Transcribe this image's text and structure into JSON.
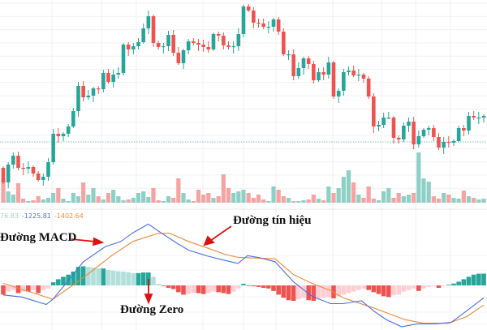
{
  "chart_data": {
    "type": "candlestick",
    "title": "",
    "price_close": [
      75,
      97,
      108,
      93,
      92,
      94,
      86,
      78,
      82,
      100,
      135,
      132,
      135,
      144,
      163,
      194,
      180,
      182,
      191,
      190,
      210,
      199,
      208,
      210,
      245,
      239,
      243,
      248,
      265,
      280,
      247,
      242,
      243,
      257,
      235,
      222,
      238,
      249,
      247,
      245,
      242,
      239,
      258,
      256,
      244,
      242,
      243,
      258,
      292,
      287,
      272,
      271,
      267,
      267,
      276,
      261,
      233,
      233,
      206,
      216,
      228,
      221,
      201,
      211,
      208,
      223,
      181,
      188,
      211,
      213,
      207,
      208,
      203,
      181,
      144,
      146,
      155,
      155,
      130,
      128,
      145,
      150,
      122,
      132,
      140,
      142,
      131,
      118,
      125,
      124,
      126,
      142,
      139,
      157,
      155,
      155,
      157
    ],
    "first_open": 93,
    "reference_price": 125,
    "volume": [
      30,
      14,
      10,
      24,
      5,
      2,
      3,
      8,
      4,
      6,
      12,
      18,
      5,
      2,
      12,
      8,
      25,
      10,
      18,
      8,
      4,
      12,
      16,
      8,
      3,
      4,
      6,
      12,
      14,
      7,
      18,
      3,
      2,
      8,
      6,
      30,
      12,
      4,
      2,
      16,
      10,
      12,
      6,
      8,
      35,
      18,
      12,
      14,
      16,
      12,
      6,
      10,
      4,
      2,
      20,
      16,
      8,
      6,
      2,
      2,
      3,
      4,
      10,
      5,
      3,
      20,
      12,
      18,
      32,
      40,
      25,
      10,
      6,
      20,
      5,
      3,
      14,
      18,
      6,
      12,
      8,
      10,
      12,
      62,
      30,
      26,
      8,
      5,
      12,
      10,
      6,
      5,
      15,
      8,
      6,
      4,
      5
    ],
    "macd_line": {
      "name": "MACD",
      "index": [
        0,
        3.7,
        8.6,
        9.9,
        12.3,
        16,
        20.4,
        23.5,
        25.9,
        29,
        31.5,
        34.6,
        37,
        40.7,
        44.4,
        46.9,
        48.8,
        51.2,
        54.3,
        58,
        61.7,
        65.4,
        67.9,
        71.6,
        74,
        76.5,
        79.6,
        82.7,
        86.4,
        89.5,
        92.6,
        96
      ],
      "values": [
        -759,
        -920,
        -1518,
        -1104,
        46,
        1886,
        3082,
        3496,
        4186,
        4876,
        4186,
        3381,
        2806,
        2346,
        1978,
        1748,
        2369,
        2208,
        1886,
        276,
        -874,
        -1449,
        -1449,
        -1219,
        -2024,
        -2714,
        -3289,
        -3059,
        -3059,
        -2944,
        -2024,
        -989
      ]
    },
    "signal_line": {
      "name": "Signal",
      "index": [
        0,
        3.7,
        9.9,
        16,
        21.6,
        25.9,
        30.9,
        33.3,
        37,
        40.7,
        44.4,
        46.9,
        54.3,
        58,
        61.7,
        65.4,
        67.9,
        74,
        80.2,
        84,
        88.9,
        92.6,
        96
      ],
      "values": [
        161,
        -299,
        -1104,
        621,
        2346,
        3496,
        4140,
        4140,
        3496,
        2990,
        2461,
        2231,
        2116,
        851,
        161,
        -414,
        -989,
        -1794,
        -2714,
        -3013,
        -3013,
        -2484,
        -1564
      ]
    },
    "histogram": [
      -30,
      -20,
      -15,
      -25,
      -20,
      -20,
      -15,
      -25,
      -15,
      -10,
      10,
      20,
      28,
      35,
      45,
      60,
      62,
      60,
      58,
      55,
      55,
      50,
      48,
      46,
      45,
      43,
      40,
      40,
      42,
      42,
      28,
      5,
      -2,
      -8,
      -12,
      -22,
      -30,
      -28,
      -25,
      -25,
      -28,
      -25,
      -20,
      -22,
      -25,
      -28,
      -20,
      -10,
      5,
      -2,
      -3,
      -5,
      -8,
      -10,
      -18,
      -30,
      -40,
      -48,
      -50,
      -45,
      -40,
      -48,
      -50,
      -42,
      -40,
      -38,
      -42,
      -35,
      -30,
      -25,
      -20,
      -15,
      -10,
      -15,
      -22,
      -28,
      -35,
      -38,
      -32,
      -30,
      -20,
      -15,
      -10,
      -18,
      -10,
      -5,
      -3,
      -8,
      -2,
      2,
      6,
      12,
      20,
      28,
      35,
      38,
      38
    ],
    "legend_values": [
      "76.83",
      "-1225.81",
      "-1402.64"
    ],
    "annotations": [
      "Đường MACD",
      "Đường tín hiệu",
      "Đường Zero"
    ],
    "colors": {
      "up": "#26a69a",
      "down": "#ef5350",
      "up_light": "#b2dfdb",
      "down_light": "#ffcdd2",
      "macd": "#4a6fdc",
      "signal": "#f0883a",
      "arrow": "#e01010"
    }
  }
}
